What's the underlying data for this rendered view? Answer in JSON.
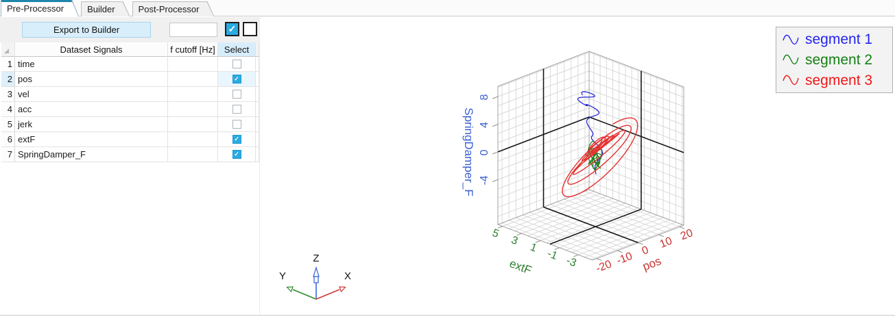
{
  "tabs": [
    {
      "label": "Pre-Processor",
      "active": true
    },
    {
      "label": "Builder",
      "active": false
    },
    {
      "label": "Post-Processor",
      "active": false
    }
  ],
  "toolbar": {
    "export_button": "Export to Builder",
    "filter_value": "",
    "select_all_checked": true,
    "deselect_all_checked": false
  },
  "table": {
    "headers": {
      "signals": "Dataset Signals",
      "fcutoff": "f cutoff [Hz]",
      "select": "Select"
    },
    "rows": [
      {
        "num": "1",
        "signal": "time",
        "fcutoff": "",
        "selected": false,
        "highlight": false
      },
      {
        "num": "2",
        "signal": "pos",
        "fcutoff": "",
        "selected": true,
        "highlight": true
      },
      {
        "num": "3",
        "signal": "vel",
        "fcutoff": "",
        "selected": false,
        "highlight": false
      },
      {
        "num": "4",
        "signal": "acc",
        "fcutoff": "",
        "selected": false,
        "highlight": false
      },
      {
        "num": "5",
        "signal": "jerk",
        "fcutoff": "",
        "selected": false,
        "highlight": false
      },
      {
        "num": "6",
        "signal": "extF",
        "fcutoff": "",
        "selected": true,
        "highlight": false
      },
      {
        "num": "7",
        "signal": "SpringDamper_F",
        "fcutoff": "",
        "selected": true,
        "highlight": false
      }
    ]
  },
  "triad": {
    "x_label": "X",
    "y_label": "Y",
    "z_label": "Z",
    "x_color": "#d23333",
    "y_color": "#2a8a2a",
    "z_color": "#2b5fd9"
  },
  "chart_data": {
    "type": "line",
    "projection": "3d",
    "grid": true,
    "axes": {
      "x": {
        "label": "pos",
        "color": "#c83232",
        "ticks": [
          -20,
          -10,
          0,
          10,
          20
        ],
        "range": [
          -22,
          22
        ]
      },
      "y": {
        "label": "extF",
        "color": "#2e7d2e",
        "ticks": [
          5,
          3,
          1,
          -1,
          -3
        ],
        "range": [
          -4.5,
          5.5
        ]
      },
      "z": {
        "label": "SpringDamper_F",
        "color": "#3a5fd0",
        "ticks": [
          8,
          4,
          0,
          -4
        ],
        "range": [
          -10.5,
          9.5
        ]
      }
    },
    "legend": {
      "position": "top-right",
      "entries": [
        {
          "label": "segment 1",
          "color": "#2424f0"
        },
        {
          "label": "segment 2",
          "color": "#148014"
        },
        {
          "label": "segment 3",
          "color": "#f21616"
        }
      ]
    },
    "series": [
      {
        "name": "segment 1",
        "color": "#1a1ad2",
        "width": 1.2,
        "gen": {
          "kind": "descend",
          "n": 340,
          "turns": 2.6,
          "px0": -2.2,
          "pxA": 3.4,
          "pxDrift": 2.2,
          "z0": 8.3,
          "zDrop": 11,
          "e0": 0.9,
          "eDrift": 1.2
        }
      },
      {
        "name": "segment 2",
        "color": "#1d801d",
        "width": 1.2,
        "gen": {
          "kind": "tangle",
          "n": 400,
          "turns": 5,
          "cx": 0.4,
          "rx": 2.6,
          "rxShrink": 1.4,
          "cy": 0.15,
          "ry": 0.9,
          "cz": -0.5,
          "rz": 1.5
        }
      },
      {
        "name": "segment 3",
        "color": "#e63030",
        "width": 1.4,
        "gen": {
          "kind": "spiral",
          "n": 760,
          "turns": 7.2,
          "cx": 1,
          "a0": 5,
          "a1": 21,
          "b0": 0.55,
          "b1": 5.2,
          "c0": 1.2,
          "c1": 2.3,
          "e0": 0.2,
          "eA": 2.4
        }
      }
    ]
  }
}
